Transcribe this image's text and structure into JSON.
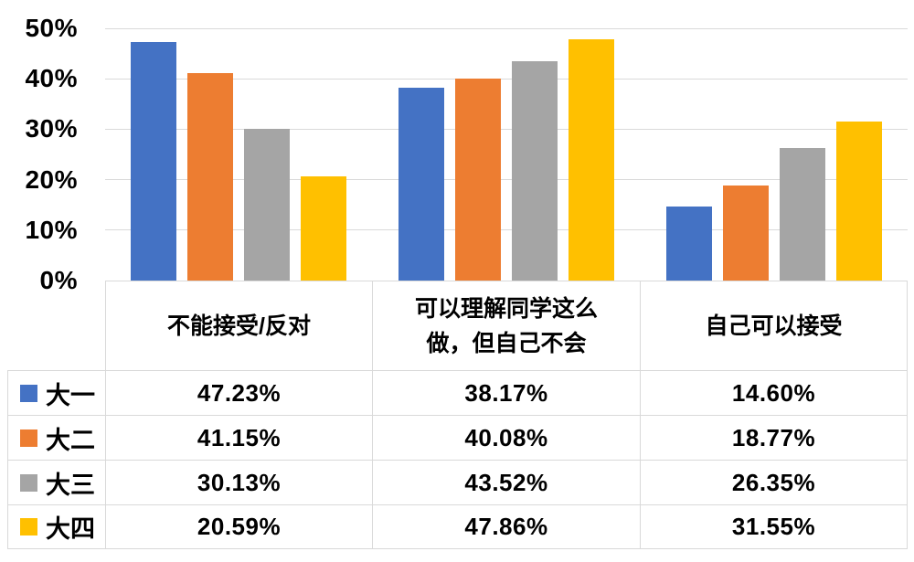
{
  "chart_data": {
    "type": "bar",
    "title": "",
    "categories": [
      "不能接受/反对",
      "可以理解同学这么做，但自己不会",
      "自己可以接受"
    ],
    "series": [
      {
        "name": "大一",
        "color": "#4472C4",
        "values": [
          47.23,
          38.17,
          14.6
        ]
      },
      {
        "name": "大二",
        "color": "#ED7D31",
        "values": [
          41.15,
          40.08,
          18.77
        ]
      },
      {
        "name": "大三",
        "color": "#A5A5A5",
        "values": [
          30.13,
          43.52,
          26.35
        ]
      },
      {
        "name": "大四",
        "color": "#FFC000",
        "values": [
          20.59,
          47.86,
          31.55
        ]
      }
    ],
    "y_axis": {
      "min": 0,
      "max": 50,
      "ticks": [
        0,
        10,
        20,
        30,
        40,
        50
      ],
      "tick_suffix": "%"
    },
    "grid": true,
    "gridline_color": "#D9D9D9",
    "legend_position": "data-table-left-column",
    "data_table": {
      "shown": true,
      "decimals": 2,
      "value_suffix": "%"
    }
  },
  "colors": {
    "background": "#FFFFFF",
    "text": "#000000",
    "table_border": "#D9D9D9"
  }
}
